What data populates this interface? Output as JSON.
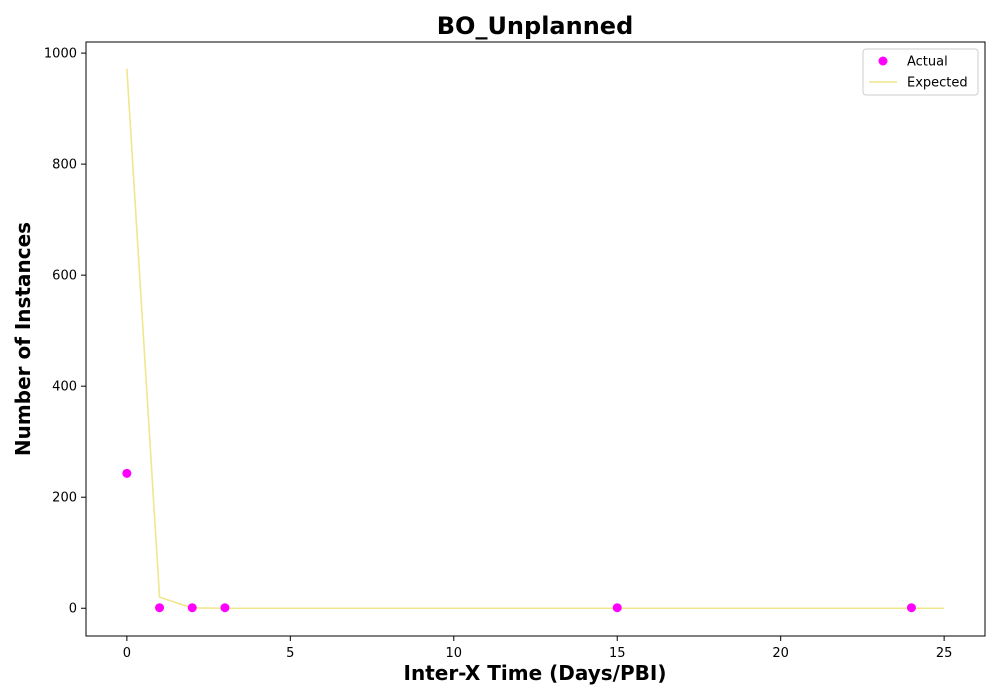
{
  "chart_data": {
    "type": "scatter",
    "title": "BO_Unplanned",
    "xlabel": "Inter-X Time (Days/PBI)",
    "ylabel": "Number of Instances",
    "xlim": [
      -1.25,
      26.25
    ],
    "ylim": [
      -50,
      1020
    ],
    "xticks": [
      0,
      5,
      10,
      15,
      20,
      25
    ],
    "yticks": [
      0,
      200,
      400,
      600,
      800,
      1000
    ],
    "grid": false,
    "legend_position": "top-right",
    "series": [
      {
        "name": "Actual",
        "kind": "scatter",
        "color": "#ff00ff",
        "points": [
          {
            "x": 0,
            "y": 243
          },
          {
            "x": 1,
            "y": 1
          },
          {
            "x": 2,
            "y": 1
          },
          {
            "x": 3,
            "y": 1
          },
          {
            "x": 15,
            "y": 1
          },
          {
            "x": 24,
            "y": 1
          }
        ]
      },
      {
        "name": "Expected",
        "kind": "line",
        "color": "#f0e68c",
        "points": [
          {
            "x": 0,
            "y": 972
          },
          {
            "x": 1,
            "y": 20
          },
          {
            "x": 2,
            "y": 0.5
          },
          {
            "x": 3,
            "y": 0
          },
          {
            "x": 4,
            "y": 0
          },
          {
            "x": 5,
            "y": 0
          },
          {
            "x": 6,
            "y": 0
          },
          {
            "x": 7,
            "y": 0
          },
          {
            "x": 8,
            "y": 0
          },
          {
            "x": 9,
            "y": 0
          },
          {
            "x": 10,
            "y": 0
          },
          {
            "x": 11,
            "y": 0
          },
          {
            "x": 12,
            "y": 0
          },
          {
            "x": 13,
            "y": 0
          },
          {
            "x": 14,
            "y": 0
          },
          {
            "x": 15,
            "y": 0
          },
          {
            "x": 16,
            "y": 0
          },
          {
            "x": 17,
            "y": 0
          },
          {
            "x": 18,
            "y": 0
          },
          {
            "x": 19,
            "y": 0
          },
          {
            "x": 20,
            "y": 0
          },
          {
            "x": 21,
            "y": 0
          },
          {
            "x": 22,
            "y": 0
          },
          {
            "x": 23,
            "y": 0
          },
          {
            "x": 24,
            "y": 0
          },
          {
            "x": 25,
            "y": 0
          }
        ]
      }
    ]
  }
}
